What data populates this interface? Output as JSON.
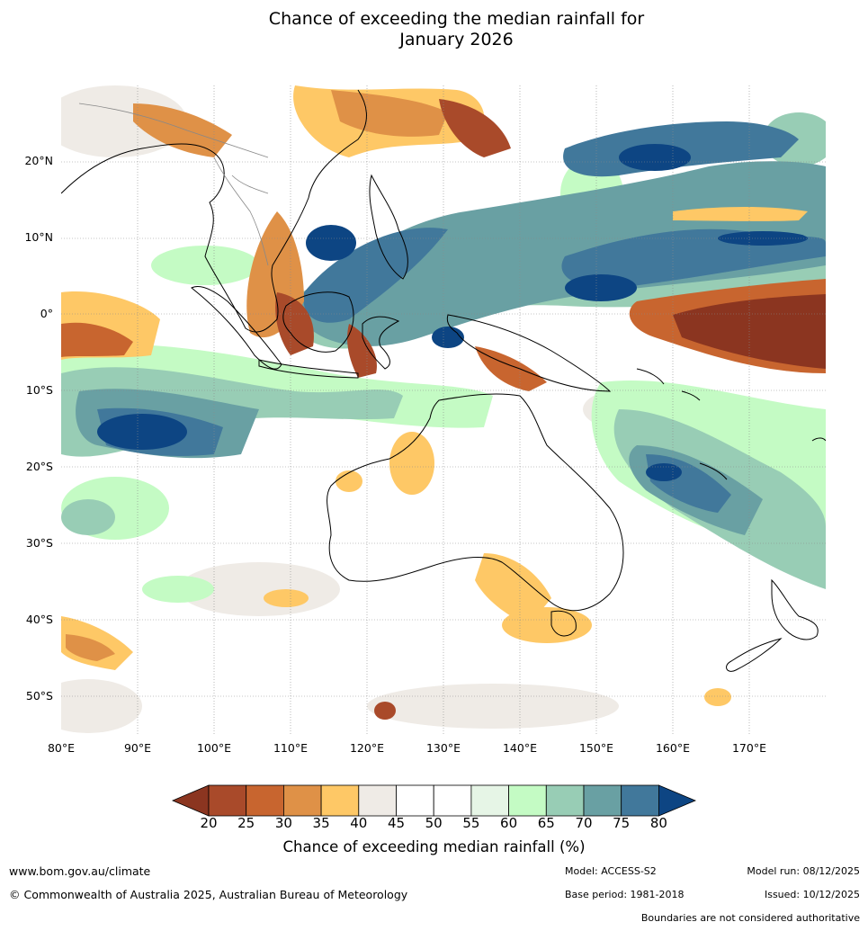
{
  "title_line1": "Chance of exceeding the median rainfall for",
  "title_line2": "January 2026",
  "lat_labels": [
    "20°N",
    "10°N",
    "0°",
    "10°S",
    "20°S",
    "30°S",
    "40°S",
    "50°S"
  ],
  "lon_labels": [
    "80°E",
    "90°E",
    "100°E",
    "110°E",
    "120°E",
    "130°E",
    "140°E",
    "150°E",
    "160°E",
    "170°E"
  ],
  "colorbar": {
    "ticks": [
      "20",
      "25",
      "30",
      "35",
      "40",
      "45",
      "50",
      "55",
      "60",
      "65",
      "70",
      "75",
      "80"
    ],
    "colors": [
      "#8b3520",
      "#a94a2a",
      "#c8652f",
      "#df9147",
      "#fec866",
      "#efebe6",
      "#ffffff",
      "#ffffff",
      "#e6f5e6",
      "#c4fbc4",
      "#98cdb5",
      "#69a0a3",
      "#41789b",
      "#0d4583"
    ],
    "label": "Chance of exceeding median rainfall (%)"
  },
  "footer": {
    "website": "www.bom.gov.au/climate",
    "copyright": "© Commonwealth of Australia 2025, Australian Bureau of Meteorology",
    "model": "Model: ACCESS-S2",
    "model_run": "Model run: 08/12/2025",
    "base_period": "Base period: 1981-2018",
    "issued": "Issued: 10/12/2025",
    "boundaries": "Boundaries are not considered authoritative"
  }
}
